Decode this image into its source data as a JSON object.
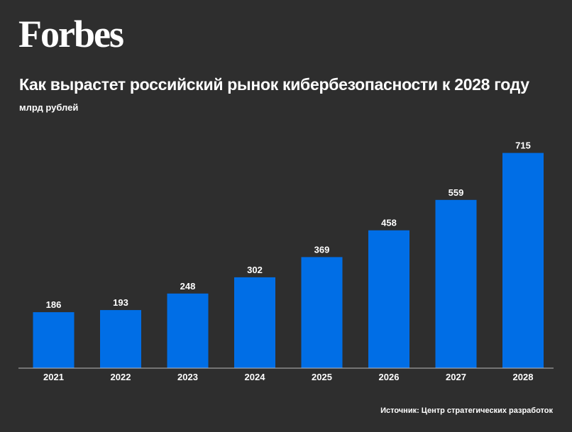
{
  "brand": {
    "logo_text": "Forbes"
  },
  "header": {
    "title": "Как вырастет российский рынок кибербезопасности к 2028 году",
    "subtitle": "млрд рублей"
  },
  "footer": {
    "source": "Источник: Центр стратегических разработок"
  },
  "colors": {
    "background": "#2e2e2e",
    "bar": "#006ee6",
    "axis": "#bbbbbb",
    "text": "#ffffff"
  },
  "chart_data": {
    "type": "bar",
    "title": "Как вырастет российский рынок кибербезопасности к 2028 году",
    "subtitle": "млрд рублей",
    "categories": [
      "2021",
      "2022",
      "2023",
      "2024",
      "2025",
      "2026",
      "2027",
      "2028"
    ],
    "values": [
      186,
      193,
      248,
      302,
      369,
      458,
      559,
      715
    ],
    "value_labels": [
      "186",
      "193",
      "248",
      "302",
      "369",
      "458",
      "559",
      "715"
    ],
    "ylim": [
      0,
      740
    ],
    "grid": false,
    "legend": "none"
  }
}
